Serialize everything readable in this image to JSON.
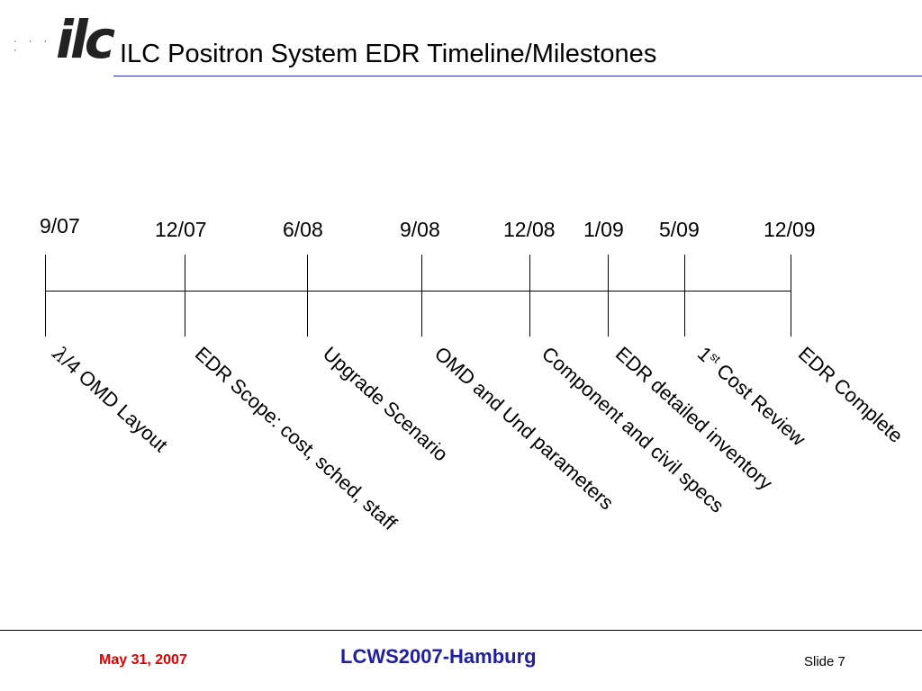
{
  "header": {
    "title": "ILC Positron System EDR Timeline/Milestones",
    "logo_icon": "ilc-logo-icon",
    "logo_text": "ilc",
    "rule_color": "#3030c0"
  },
  "timeline": {
    "dates": [
      "9/07",
      "12/07",
      "6/08",
      "9/08",
      "12/08",
      "1/09",
      "5/09",
      "12/09"
    ],
    "milestones": [
      {
        "prefix": "λ",
        "text": "/4 OMD Layout"
      },
      {
        "text": "EDR Scope: cost, sched, staff"
      },
      {
        "text": "Upgrade Scenario"
      },
      {
        "text": "OMD and Und parameters"
      },
      {
        "text": "Component and civil specs"
      },
      {
        "text": "EDR detailed inventory"
      },
      {
        "text": "1",
        "sup": "st",
        "suffix": " Cost Review"
      },
      {
        "text": "EDR Complete"
      }
    ]
  },
  "footer": {
    "date": "May 31, 2007",
    "date_color": "#e00000",
    "conference": "LCWS2007-Hamburg",
    "conference_color": "#1f1f9f",
    "slide": "Slide 7"
  }
}
